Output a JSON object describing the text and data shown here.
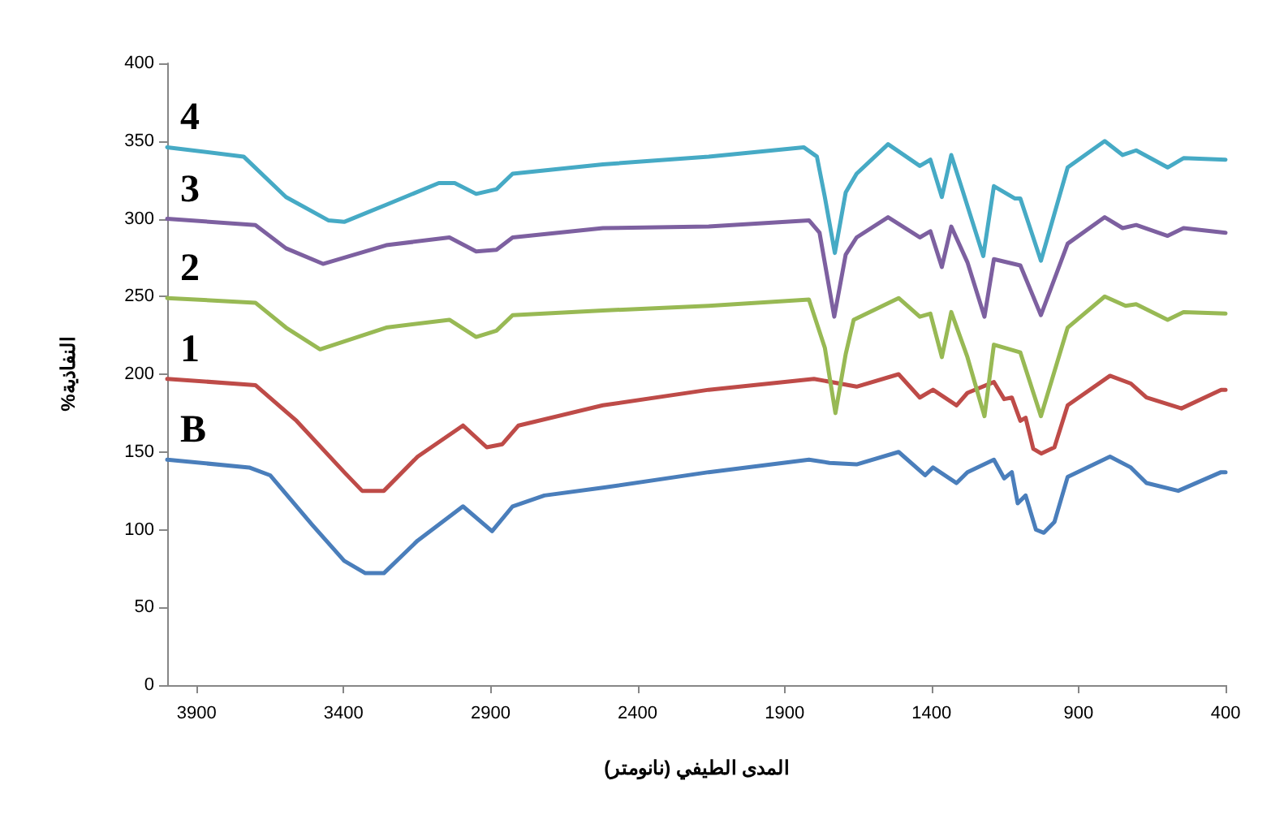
{
  "chart_data": {
    "type": "line",
    "xlabel": "المدى الطيفي (نانومتر)",
    "ylabel": "%النفاذية",
    "xlim": [
      4000,
      400
    ],
    "xticks": [
      3900,
      3400,
      2900,
      2400,
      1900,
      1400,
      900,
      400
    ],
    "ylim": [
      0,
      400
    ],
    "yticks": [
      0,
      50,
      100,
      150,
      200,
      250,
      300,
      350,
      400
    ],
    "grid": false,
    "legend": false,
    "marker": "none",
    "line_style": "solid",
    "series": [
      {
        "name": "B",
        "color": "#4a7ebb",
        "x": [
          4000,
          3721,
          3650,
          3506,
          3398,
          3326,
          3263,
          3148,
          2994,
          2895,
          2825,
          2717,
          2518,
          2158,
          1817,
          1747,
          1655,
          1512,
          1422,
          1395,
          1315,
          1278,
          1188,
          1153,
          1127,
          1107,
          1080,
          1045,
          1018,
          982,
          937,
          793,
          722,
          669,
          561,
          415,
          400
        ],
        "values": [
          145,
          140,
          135,
          103,
          80,
          72,
          72,
          93,
          115,
          99,
          115,
          122,
          127,
          137,
          145,
          143,
          142,
          150,
          135,
          140,
          130,
          137,
          145,
          133,
          137,
          117,
          122,
          100,
          98,
          105,
          134,
          147,
          140,
          130,
          125,
          137,
          137
        ]
      },
      {
        "name": "1",
        "color": "#be4b48",
        "x": [
          4000,
          3700,
          3560,
          3398,
          3337,
          3263,
          3148,
          2994,
          2913,
          2860,
          2805,
          2518,
          2158,
          1800,
          1655,
          1512,
          1440,
          1395,
          1315,
          1278,
          1188,
          1153,
          1127,
          1098,
          1080,
          1054,
          1027,
          982,
          937,
          793,
          722,
          669,
          550,
          415,
          400
        ],
        "values": [
          197,
          193,
          170,
          137,
          125,
          125,
          147,
          167,
          153,
          155,
          167,
          180,
          190,
          197,
          192,
          200,
          185,
          190,
          180,
          188,
          195,
          184,
          185,
          170,
          172,
          152,
          149,
          153,
          180,
          199,
          194,
          185,
          178,
          190,
          190
        ]
      },
      {
        "name": "2",
        "color": "#98b954",
        "x": [
          4000,
          3700,
          3596,
          3480,
          3255,
          3040,
          2949,
          2880,
          2825,
          2518,
          2158,
          1817,
          1763,
          1727,
          1692,
          1665,
          1512,
          1440,
          1404,
          1365,
          1333,
          1278,
          1220,
          1188,
          1098,
          1028,
          937,
          811,
          740,
          704,
          597,
          543,
          400
        ],
        "values": [
          249,
          246,
          230,
          216,
          230,
          235,
          224,
          228,
          238,
          241,
          244,
          248,
          217,
          175,
          213,
          235,
          249,
          237,
          239,
          211,
          240,
          211,
          173,
          219,
          214,
          173,
          230,
          250,
          244,
          245,
          235,
          240,
          239
        ]
      },
      {
        "name": "3",
        "color": "#7d60a0",
        "x": [
          4000,
          3700,
          3596,
          3470,
          3255,
          3040,
          2949,
          2880,
          2825,
          2518,
          2158,
          1817,
          1781,
          1731,
          1692,
          1655,
          1548,
          1440,
          1404,
          1365,
          1333,
          1278,
          1220,
          1188,
          1098,
          1028,
          937,
          811,
          750,
          704,
          597,
          543,
          400
        ],
        "values": [
          300,
          296,
          281,
          271,
          283,
          288,
          279,
          280,
          288,
          294,
          295,
          299,
          291,
          237,
          277,
          288,
          301,
          288,
          292,
          269,
          295,
          272,
          237,
          274,
          270,
          238,
          284,
          301,
          294,
          296,
          289,
          294,
          291
        ]
      },
      {
        "name": "4",
        "color": "#46aac5",
        "x": [
          4000,
          3740,
          3596,
          3452,
          3398,
          3255,
          3076,
          3022,
          2949,
          2880,
          2825,
          2518,
          2158,
          1835,
          1790,
          1763,
          1729,
          1692,
          1655,
          1548,
          1440,
          1404,
          1365,
          1333,
          1296,
          1224,
          1188,
          1116,
          1098,
          1028,
          937,
          811,
          750,
          704,
          597,
          543,
          400
        ],
        "values": [
          346,
          340,
          314,
          299,
          298,
          309,
          323,
          323,
          316,
          319,
          329,
          335,
          340,
          346,
          340,
          314,
          278,
          317,
          329,
          348,
          334,
          338,
          314,
          341,
          319,
          276,
          321,
          313,
          313,
          273,
          333,
          350,
          341,
          344,
          333,
          339,
          338
        ]
      }
    ]
  }
}
